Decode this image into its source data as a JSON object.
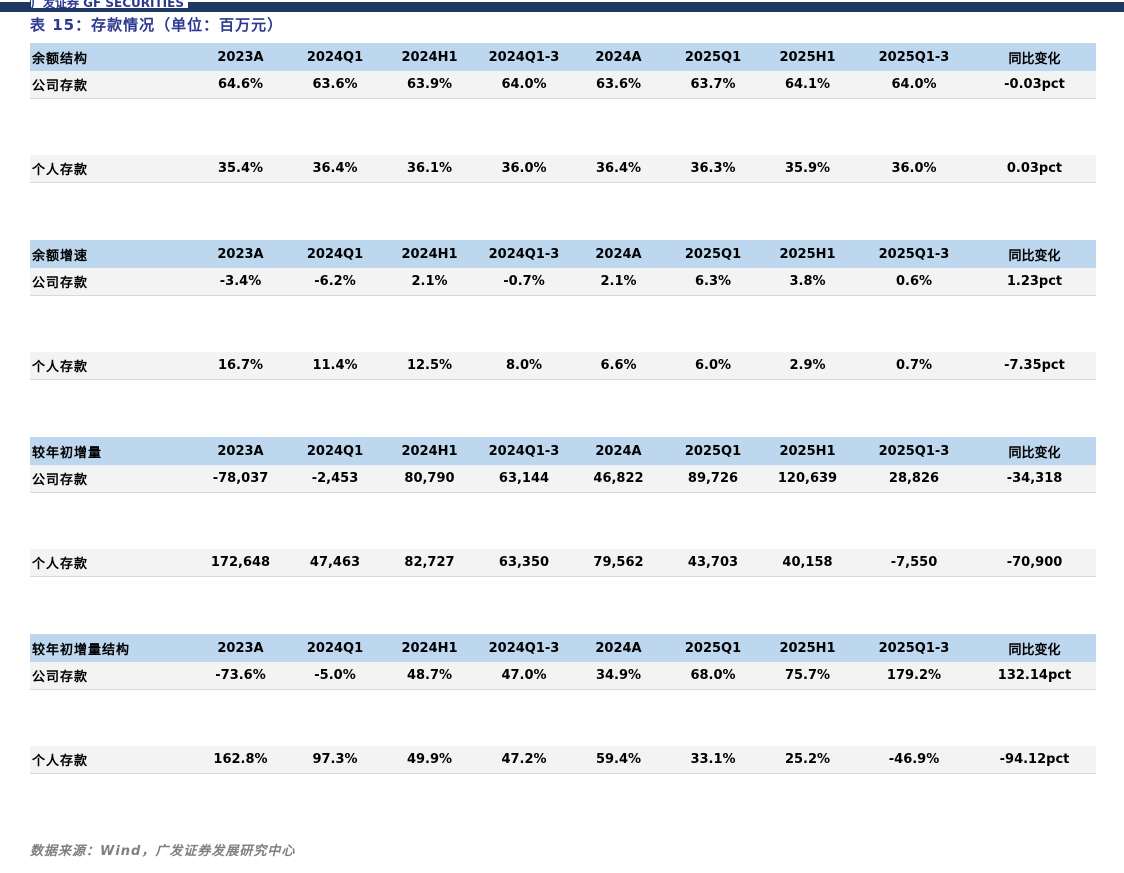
{
  "logo": {
    "text": "广发证券 GF SECURITIES"
  },
  "title": "表 15：存款情况（单位：百万元）",
  "columns": [
    "2023A",
    "2024Q1",
    "2024H1",
    "2024Q1-3",
    "2024A",
    "2025Q1",
    "2025H1",
    "2025Q1-3",
    "同比变化"
  ],
  "sections": [
    {
      "header": "余额结构",
      "rows": [
        {
          "label": "公司存款",
          "values": [
            "64.6%",
            "63.6%",
            "63.9%",
            "64.0%",
            "63.6%",
            "63.7%",
            "64.1%",
            "64.0%",
            "-0.03pct"
          ]
        },
        {
          "label": "个人存款",
          "values": [
            "35.4%",
            "36.4%",
            "36.1%",
            "36.0%",
            "36.4%",
            "36.3%",
            "35.9%",
            "36.0%",
            "0.03pct"
          ]
        }
      ]
    },
    {
      "header": "余额增速",
      "rows": [
        {
          "label": "公司存款",
          "values": [
            "-3.4%",
            "-6.2%",
            "2.1%",
            "-0.7%",
            "2.1%",
            "6.3%",
            "3.8%",
            "0.6%",
            "1.23pct"
          ]
        },
        {
          "label": "个人存款",
          "values": [
            "16.7%",
            "11.4%",
            "12.5%",
            "8.0%",
            "6.6%",
            "6.0%",
            "2.9%",
            "0.7%",
            "-7.35pct"
          ]
        }
      ]
    },
    {
      "header": "较年初增量",
      "rows": [
        {
          "label": "公司存款",
          "values": [
            "-78,037",
            "-2,453",
            "80,790",
            "63,144",
            "46,822",
            "89,726",
            "120,639",
            "28,826",
            "-34,318"
          ]
        },
        {
          "label": "个人存款",
          "values": [
            "172,648",
            "47,463",
            "82,727",
            "63,350",
            "79,562",
            "43,703",
            "40,158",
            "-7,550",
            "-70,900"
          ]
        }
      ]
    },
    {
      "header": "较年初增量结构",
      "rows": [
        {
          "label": "公司存款",
          "values": [
            "-73.6%",
            "-5.0%",
            "48.7%",
            "47.0%",
            "34.9%",
            "68.0%",
            "75.7%",
            "179.2%",
            "132.14pct"
          ]
        },
        {
          "label": "个人存款",
          "values": [
            "162.8%",
            "97.3%",
            "49.9%",
            "47.2%",
            "59.4%",
            "33.1%",
            "25.2%",
            "-46.9%",
            "-94.12pct"
          ]
        }
      ]
    }
  ],
  "footer": "数据来源：Wind，广发证券发展研究中心",
  "colors": {
    "top_bar": "#1F3864",
    "title_blue": "#2B3990",
    "header_row_bg": "#BDD7EE",
    "data_row_bg": "#F3F3F3",
    "footer_gray": "#808080"
  }
}
